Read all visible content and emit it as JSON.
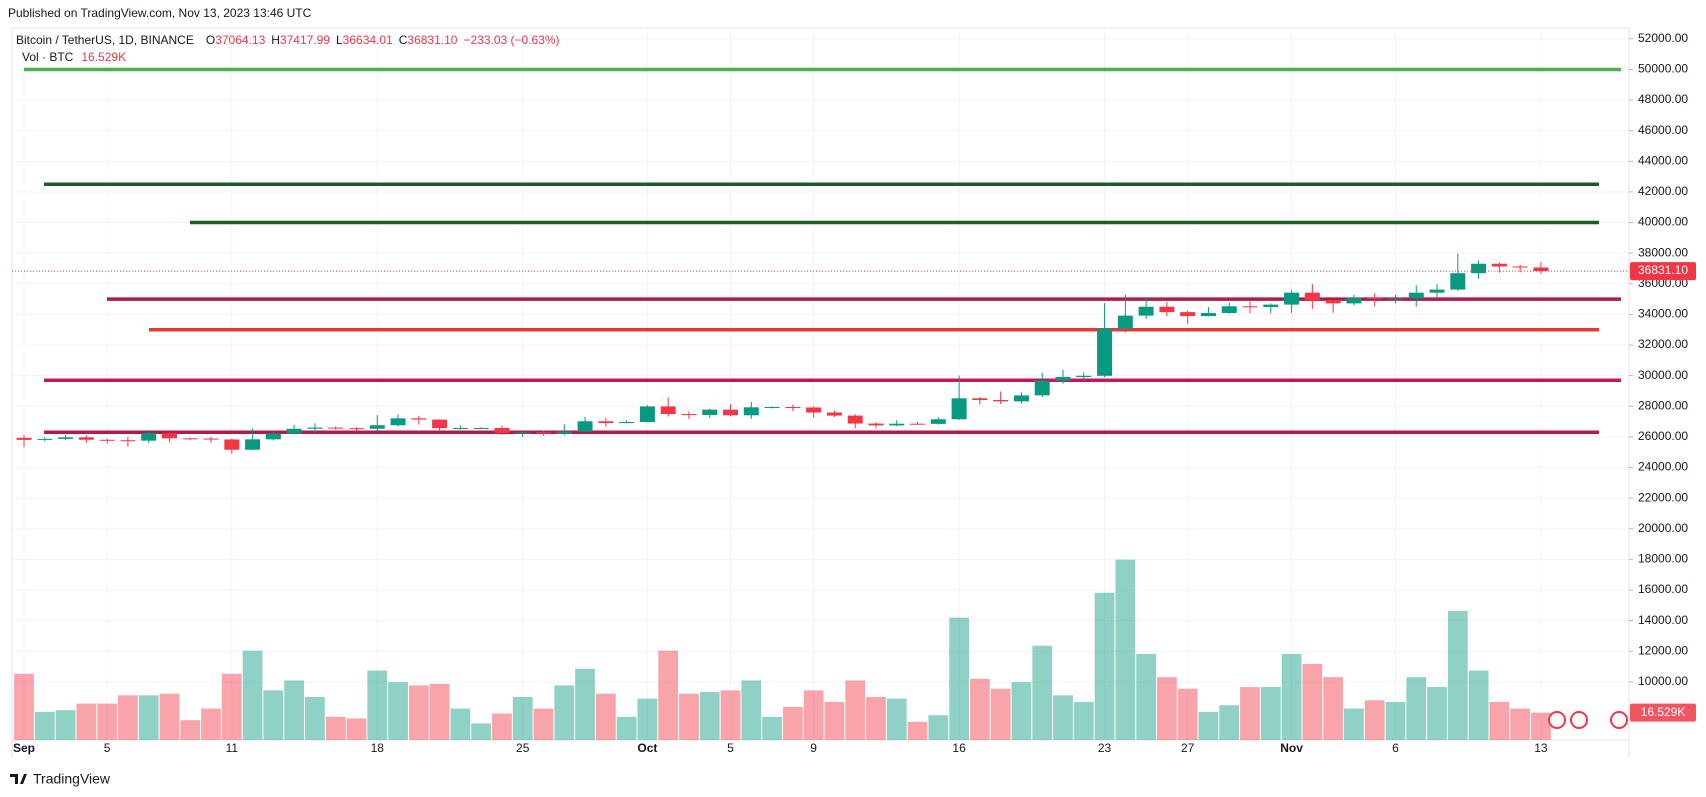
{
  "header": {
    "published": "Published on TradingView.com, Nov 13, 2023 13:46 UTC",
    "brand": "TradingView"
  },
  "chart_data": {
    "type": "candlestick",
    "symbol": "Bitcoin / TetherUS, 1D, BINANCE",
    "ohlc_legend": [
      {
        "label": "O",
        "value": "37064.13"
      },
      {
        "label": "H",
        "value": "37417.99"
      },
      {
        "label": "L",
        "value": "36634.01"
      },
      {
        "label": "C",
        "value": "36831.10"
      }
    ],
    "change": "−233.03 (−0.63%)",
    "volume_name": "Vol · BTC",
    "volume_label": "16.529K",
    "last_price_label": "36831.10",
    "up_color": "#089981",
    "down_color": "#f23645",
    "categories": [
      "Sep",
      null,
      null,
      null,
      "5",
      null,
      null,
      null,
      null,
      null,
      "11",
      null,
      null,
      null,
      null,
      null,
      null,
      "18",
      null,
      null,
      null,
      null,
      null,
      null,
      "25",
      null,
      null,
      null,
      null,
      null,
      "Oct",
      null,
      null,
      null,
      "5",
      null,
      null,
      null,
      "9",
      null,
      null,
      null,
      null,
      null,
      null,
      "16",
      null,
      null,
      null,
      null,
      null,
      null,
      "23",
      null,
      null,
      null,
      "27",
      null,
      null,
      null,
      null,
      "Nov",
      null,
      null,
      null,
      null,
      "6",
      null,
      null,
      null,
      null,
      null,
      null,
      "13"
    ],
    "open": [
      25940,
      25805,
      25869,
      25970,
      25812,
      25780,
      25754,
      26240,
      25905,
      25890,
      25831,
      25160,
      25840,
      26220,
      26530,
      26608,
      26569,
      26530,
      26760,
      27210,
      27130,
      26570,
      26580,
      26580,
      26250,
      26300,
      26210,
      26350,
      27020,
      26900,
      26970,
      27990,
      27490,
      27430,
      27780,
      27410,
      27930,
      27950,
      27920,
      27590,
      27390,
      26870,
      26750,
      26860,
      26850,
      27150,
      28520,
      28410,
      28320,
      28710,
      29670,
      29910,
      29990,
      33070,
      33920,
      34500,
      34150,
      33890,
      34090,
      34530,
      34480,
      34640,
      35420,
      34940,
      34720,
      35080,
      35010,
      35040,
      35420,
      35620,
      36690,
      37310,
      37130,
      37064.13
    ],
    "high": [
      26125,
      25983,
      26135,
      26100,
      25900,
      26000,
      26440,
      26450,
      25945,
      26000,
      25882,
      26550,
      26400,
      26790,
      26890,
      26670,
      26620,
      27420,
      27480,
      27380,
      27150,
      26740,
      26640,
      26740,
      26430,
      26390,
      26830,
      27300,
      27230,
      27090,
      28060,
      28590,
      27670,
      27830,
      28130,
      28290,
      28000,
      28110,
      27990,
      27730,
      27480,
      26940,
      27100,
      26990,
      27290,
      30000,
      28610,
      28970,
      28920,
      30200,
      30380,
      30200,
      34740,
      35280,
      35130,
      34830,
      34250,
      34480,
      34770,
      34860,
      34720,
      35580,
      35980,
      34940,
      35280,
      35380,
      35270,
      35900,
      35980,
      37970,
      37520,
      37400,
      37240,
      37417.99
    ],
    "low": [
      25333,
      25711,
      25800,
      25600,
      25570,
      25360,
      25610,
      25650,
      25810,
      25600,
      24900,
      25130,
      25760,
      26200,
      26220,
      26470,
      26400,
      26380,
      26670,
      26800,
      26350,
      26470,
      26510,
      26120,
      25990,
      26090,
      26100,
      26330,
      26660,
      26890,
      26950,
      27330,
      27160,
      27220,
      27360,
      27170,
      27850,
      27690,
      27260,
      27300,
      26560,
      26550,
      26700,
      26800,
      26800,
      27110,
      28110,
      28140,
      28180,
      28590,
      29480,
      29680,
      29900,
      32830,
      33700,
      33880,
      33380,
      33870,
      34050,
      34080,
      34070,
      34100,
      34350,
      34100,
      34580,
      34520,
      34720,
      34500,
      35120,
      35540,
      36330,
      36720,
      36750,
      36634.01
    ],
    "close": [
      25805,
      25869,
      25970,
      25812,
      25780,
      25754,
      26240,
      25905,
      25890,
      25831,
      25160,
      25840,
      26220,
      26530,
      26608,
      26569,
      26530,
      26760,
      27210,
      27130,
      26570,
      26580,
      26580,
      26250,
      26300,
      26210,
      26350,
      27020,
      26900,
      26970,
      27990,
      27490,
      27430,
      27780,
      27410,
      27930,
      27950,
      27920,
      27590,
      27390,
      26870,
      26750,
      26860,
      26850,
      27150,
      28520,
      28410,
      28320,
      28710,
      29670,
      29910,
      29990,
      33070,
      33920,
      34500,
      34150,
      33890,
      34090,
      34530,
      34480,
      34640,
      35420,
      34940,
      34720,
      35080,
      35010,
      35040,
      35420,
      35620,
      36690,
      37310,
      37130,
      37064.13,
      36831.1
    ],
    "volume": [
      40,
      17,
      18,
      22,
      22,
      27,
      27,
      28,
      12,
      19,
      40,
      54,
      30,
      36,
      26,
      14,
      13,
      42,
      35,
      33,
      34,
      19,
      10,
      16,
      26,
      19,
      33,
      43,
      28,
      14,
      25,
      54,
      28,
      29,
      30,
      36,
      14,
      20,
      30,
      23,
      36,
      26,
      25,
      11,
      15,
      74,
      37,
      31,
      35,
      57,
      27,
      23,
      89,
      109,
      52,
      38,
      31,
      17,
      21,
      32,
      32,
      52,
      46,
      38,
      19,
      24,
      23,
      38,
      32,
      78,
      42,
      23,
      19,
      16.529
    ],
    "ylim": [
      6200,
      53100
    ],
    "y2lim": [
      0,
      434
    ],
    "yticks": [
      {
        "value": 52000,
        "label": "52000.00"
      },
      {
        "value": 50000,
        "label": "50000.00"
      },
      {
        "value": 48000,
        "label": "48000.00"
      },
      {
        "value": 46000,
        "label": "46000.00"
      },
      {
        "value": 44000,
        "label": "44000.00"
      },
      {
        "value": 42000,
        "label": "42000.00"
      },
      {
        "value": 40000,
        "label": "40000.00"
      },
      {
        "value": 38000,
        "label": "38000.00"
      },
      {
        "value": 36000,
        "label": "36000.00"
      },
      {
        "value": 34000,
        "label": "34000.00"
      },
      {
        "value": 32000,
        "label": "32000.00"
      },
      {
        "value": 30000,
        "label": "30000.00"
      },
      {
        "value": 28000,
        "label": "28000.00"
      },
      {
        "value": 26000,
        "label": "26000.00"
      },
      {
        "value": 24000,
        "label": "24000.00"
      },
      {
        "value": 22000,
        "label": "22000.00"
      },
      {
        "value": 20000,
        "label": "20000.00"
      },
      {
        "value": 18000,
        "label": "18000.00"
      },
      {
        "value": 16000,
        "label": "16000.00"
      },
      {
        "value": 14000,
        "label": "14000.00"
      },
      {
        "value": 12000,
        "label": "12000.00"
      },
      {
        "value": 10000,
        "label": "10000.00"
      }
    ],
    "grid": true,
    "levels": [
      {
        "value": 50000,
        "color": "#4caf50"
      },
      {
        "value": 42500,
        "color": "#1b5e20"
      },
      {
        "value": 40000,
        "color": "#1b5e20"
      },
      {
        "value": 35000,
        "color": "#b2194d"
      },
      {
        "value": 33000,
        "color": "#e53935"
      },
      {
        "value": 29700,
        "color": "#c2185b"
      },
      {
        "value": 26300,
        "color": "#b2194d"
      }
    ]
  }
}
